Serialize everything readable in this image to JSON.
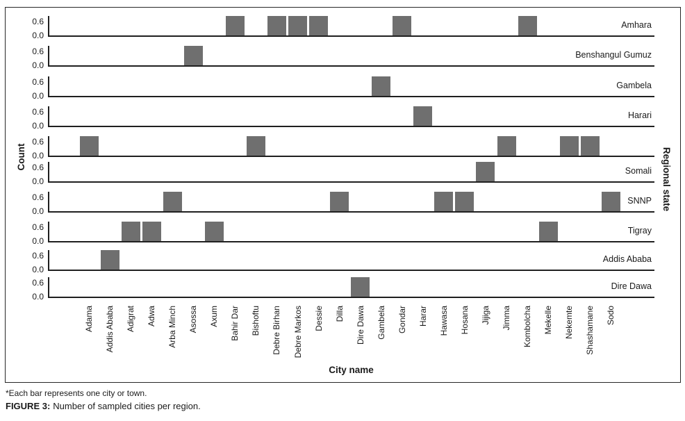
{
  "figure": {
    "y_axis_title": "Count",
    "x_axis_title": "City name",
    "right_axis_title": "Regional state",
    "footnote": "*Each bar represents one city or town.",
    "caption_label": "FIGURE 3:",
    "caption_text": "Number of sampled cities per region."
  },
  "chart_data": {
    "type": "bar",
    "layout": "faceted-rows",
    "title": "Number of sampled cities per region",
    "xlabel": "City name",
    "ylabel": "Count",
    "facet_axis_label": "Regional state",
    "yticks": [
      "0.6",
      "0.0"
    ],
    "ylim": [
      0,
      0.75
    ],
    "grid": false,
    "bar_color": "#6f6f6f",
    "bar_value_per_city": 1,
    "categories": [
      "Adama",
      "Addis Ababa",
      "Adigrat",
      "Adwa",
      "Arba Minch",
      "Asossa",
      "Axum",
      "Bahir Dar",
      "Bishoftu",
      "Debre Birhan",
      "Debre Markos",
      "Dessie",
      "Dilla",
      "Dire Dawa",
      "Gambela",
      "Gondar",
      "Harar",
      "Hawasa",
      "Hosana",
      "Jijiga",
      "Jimma",
      "Kombolcha",
      "Mekelle",
      "Nekemte",
      "Shashamane",
      "Sodo"
    ],
    "facets": [
      {
        "region": "Amhara",
        "cities": [
          "Bahir Dar",
          "Debre Birhan",
          "Debre Markos",
          "Dessie",
          "Gondar",
          "Kombolcha"
        ]
      },
      {
        "region": "Benshangul Gumuz",
        "cities": [
          "Asossa"
        ]
      },
      {
        "region": "Gambela",
        "cities": [
          "Gambela"
        ]
      },
      {
        "region": "Harari",
        "cities": [
          "Harar"
        ]
      },
      {
        "region": "",
        "cities": [
          "Adama",
          "Bishoftu",
          "Jimma",
          "Nekemte",
          "Shashamane"
        ]
      },
      {
        "region": "Somali",
        "cities": [
          "Jijiga"
        ]
      },
      {
        "region": "SNNP",
        "cities": [
          "Arba Minch",
          "Dilla",
          "Hawasa",
          "Hosana",
          "Sodo"
        ]
      },
      {
        "region": "Tigray",
        "cities": [
          "Adigrat",
          "Adwa",
          "Axum",
          "Mekelle"
        ]
      },
      {
        "region": "Addis Ababa",
        "cities": [
          "Addis Ababa"
        ]
      },
      {
        "region": "Dire Dawa",
        "cities": [
          "Dire Dawa"
        ]
      }
    ]
  }
}
